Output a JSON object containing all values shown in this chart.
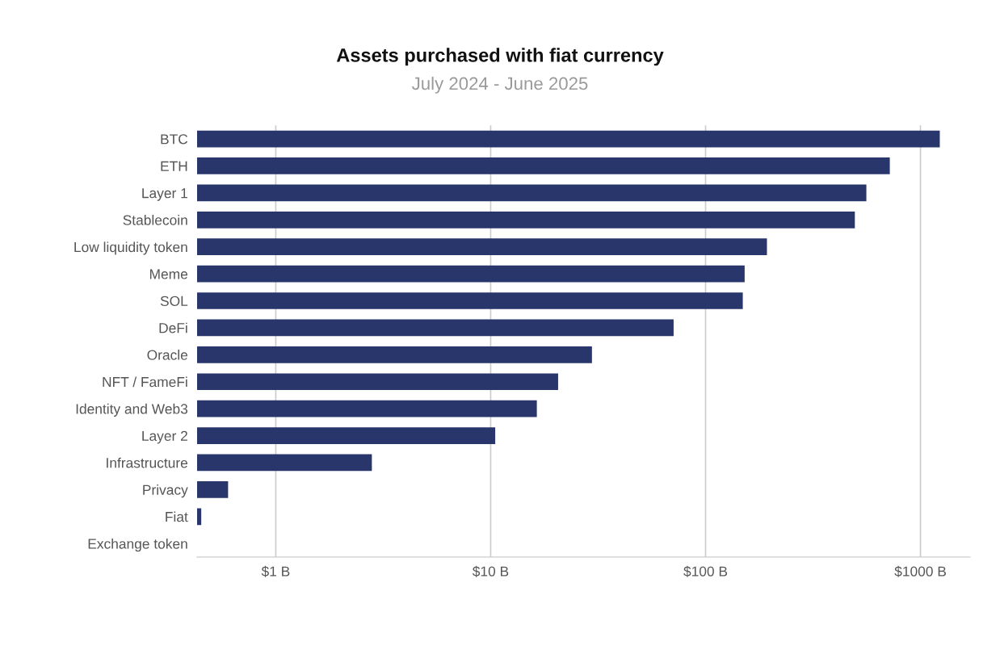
{
  "chart_data": {
    "type": "bar",
    "orientation": "horizontal",
    "log": "x",
    "title": "Assets purchased with fiat currency",
    "subtitle": "July 2024 - June 2025",
    "categories": [
      "BTC",
      "ETH",
      "Layer 1",
      "Stablecoin",
      "Low liquidity token",
      "Meme",
      "SOL",
      "DeFi",
      "Oracle",
      "NFT / FameFi",
      "Identity and Web3",
      "Layer 2",
      "Infrastructure",
      "Privacy",
      "Fiat",
      "Exchange token"
    ],
    "values": [
      1230,
      720,
      560,
      495,
      193,
      152,
      149,
      71,
      29.6,
      20.6,
      16.4,
      10.5,
      2.8,
      0.6,
      0.45,
      null
    ],
    "color": "#29366b",
    "xlim": [
      0.43,
      1700
    ],
    "xticks": [
      {
        "value": 1,
        "label": "$1 B"
      },
      {
        "value": 10,
        "label": "$10 B"
      },
      {
        "value": 100,
        "label": "$100 B"
      },
      {
        "value": 1000,
        "label": "$1000 B"
      }
    ],
    "grid": "x",
    "legend": false
  }
}
